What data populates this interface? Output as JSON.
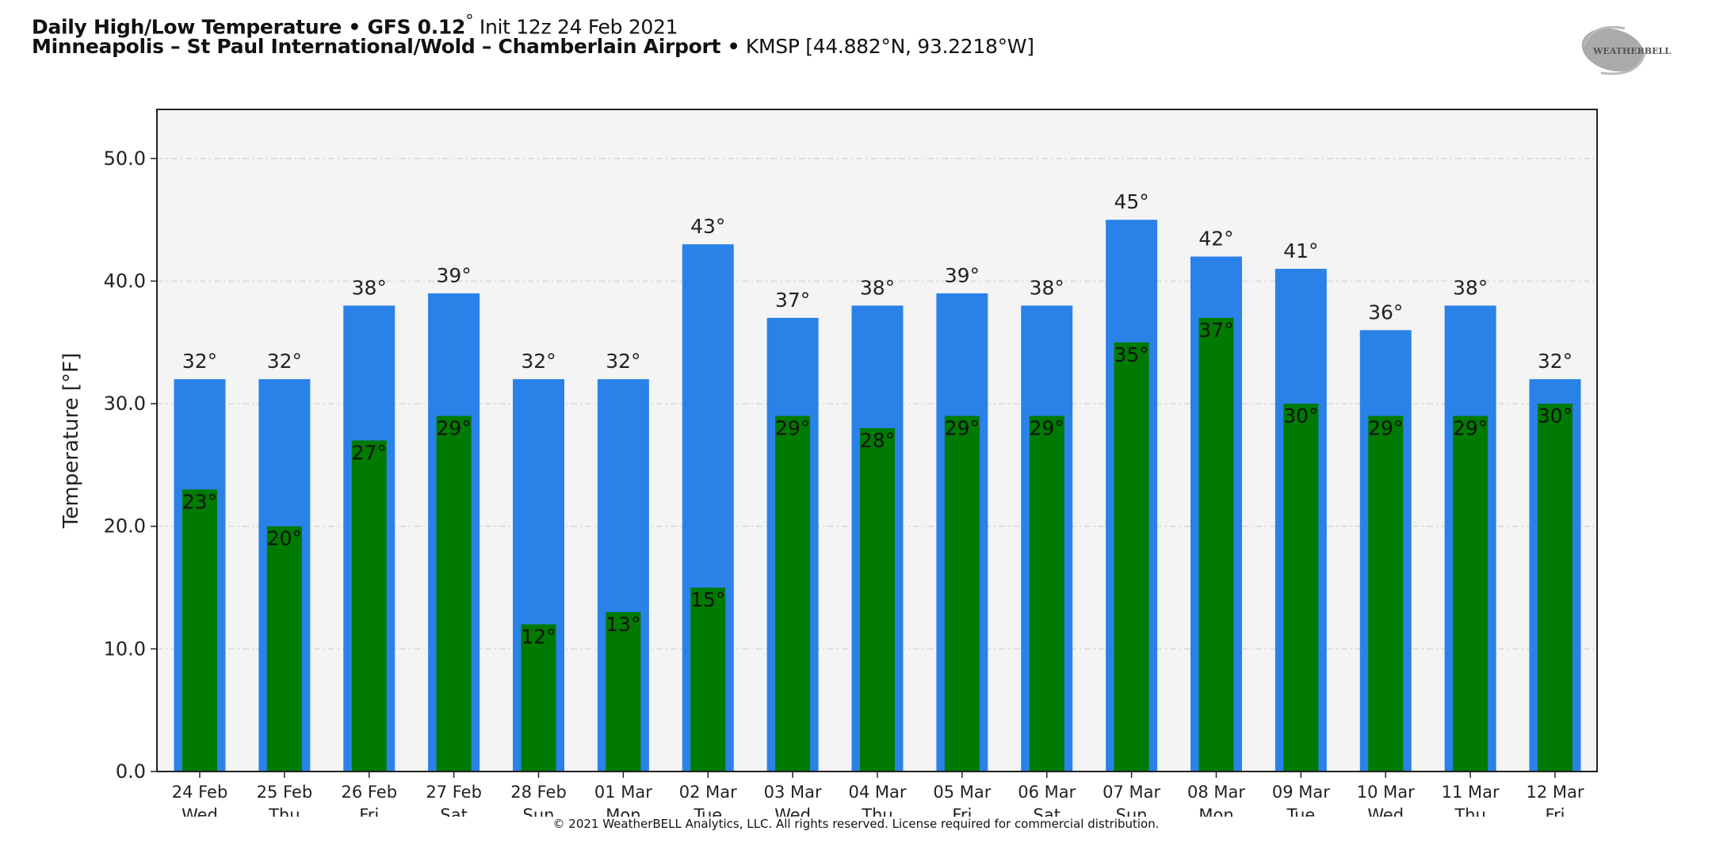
{
  "header": {
    "title_bold": "Daily High/Low Temperature • GFS 0.12",
    "title_deg": "°",
    "title_init": " Init 12z 24 Feb 2021",
    "subtitle_bold": "Minneapolis – St Paul International/Wold – Chamberlain Airport •",
    "subtitle_rest": " KMSP [44.882°N, 93.2218°W]",
    "logo_text": "WeatherBELL"
  },
  "footer": {
    "copyright": "© 2021 WeatherBELL Analytics, LLC. All rights reserved. License required for commercial distribution."
  },
  "chart_data": {
    "type": "bar",
    "title": "Daily High/Low Temperature",
    "xlabel": "",
    "ylabel": "Temperature [°F]",
    "ylim": [
      0,
      54
    ],
    "yticks": [
      0,
      10,
      20,
      30,
      40,
      50
    ],
    "ytick_labels": [
      "0.0",
      "10.0",
      "20.0",
      "30.0",
      "40.0",
      "50.0"
    ],
    "grid": true,
    "categories": [
      "24 Feb",
      "25 Feb",
      "26 Feb",
      "27 Feb",
      "28 Feb",
      "01 Mar",
      "02 Mar",
      "03 Mar",
      "04 Mar",
      "05 Mar",
      "06 Mar",
      "07 Mar",
      "08 Mar",
      "09 Mar",
      "10 Mar",
      "11 Mar",
      "12 Mar"
    ],
    "weekdays": [
      "Wed",
      "Thu",
      "Fri",
      "Sat",
      "Sun",
      "Mon",
      "Tue",
      "Wed",
      "Thu",
      "Fri",
      "Sat",
      "Sun",
      "Mon",
      "Tue",
      "Wed",
      "Thu",
      "Fri"
    ],
    "series": [
      {
        "name": "High",
        "color": "#2a82e8",
        "values": [
          32,
          32,
          38,
          39,
          32,
          32,
          43,
          37,
          38,
          39,
          38,
          45,
          42,
          41,
          36,
          38,
          32
        ]
      },
      {
        "name": "Low",
        "color": "#007a00",
        "values": [
          23,
          20,
          27,
          29,
          12,
          13,
          15,
          29,
          28,
          29,
          29,
          35,
          37,
          30,
          29,
          29,
          30
        ]
      }
    ],
    "label_suffix": "°"
  }
}
